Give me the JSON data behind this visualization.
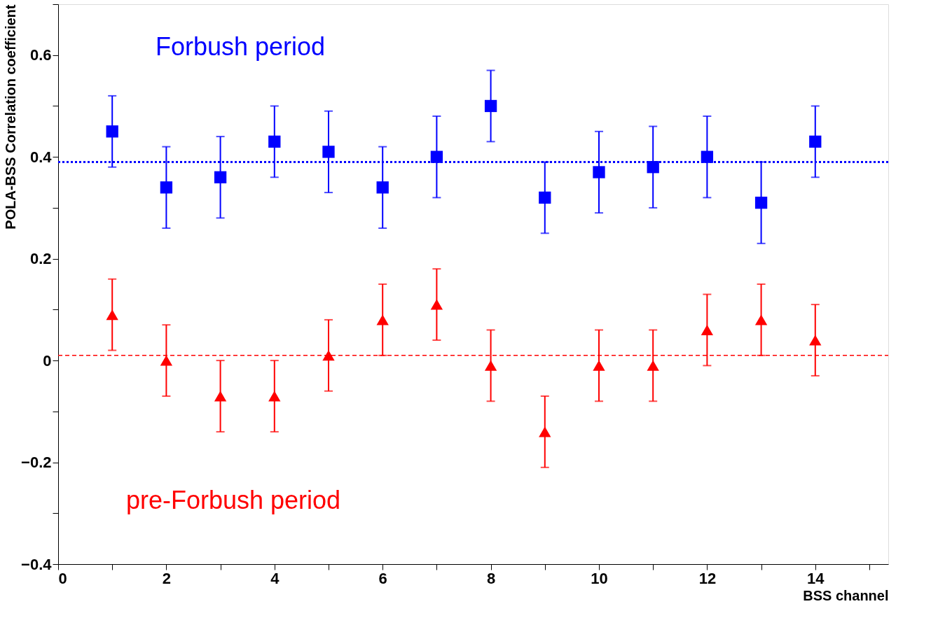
{
  "chart_data": {
    "type": "scatter",
    "xlabel": "BSS channel",
    "ylabel": "POLA-BSS Correlation coefficient",
    "x": [
      1,
      2,
      3,
      4,
      5,
      6,
      7,
      8,
      9,
      10,
      11,
      12,
      13,
      14
    ],
    "series": [
      {
        "name": "Forbush period",
        "color": "#0000ff",
        "marker": "square",
        "values": [
          0.45,
          0.34,
          0.36,
          0.43,
          0.41,
          0.34,
          0.4,
          0.5,
          0.32,
          0.37,
          0.38,
          0.4,
          0.31,
          0.43
        ],
        "errors": [
          0.07,
          0.08,
          0.08,
          0.07,
          0.08,
          0.08,
          0.08,
          0.07,
          0.07,
          0.08,
          0.08,
          0.08,
          0.08,
          0.07
        ]
      },
      {
        "name": "pre-Forbush period",
        "color": "#ff0000",
        "marker": "triangle",
        "values": [
          0.09,
          0.0,
          -0.07,
          -0.07,
          0.01,
          0.08,
          0.11,
          -0.01,
          -0.14,
          -0.01,
          -0.01,
          0.06,
          0.08,
          0.04
        ],
        "errors": [
          0.07,
          0.07,
          0.07,
          0.07,
          0.07,
          0.07,
          0.07,
          0.07,
          0.07,
          0.07,
          0.07,
          0.07,
          0.07,
          0.07
        ]
      }
    ],
    "ref_lines": [
      {
        "axis": "y",
        "value": 0.39,
        "color": "#0000ff",
        "line_style": "dotted"
      },
      {
        "axis": "y",
        "value": 0.01,
        "color": "#ff0000",
        "line_style": "dashed"
      }
    ],
    "xlim": [
      0,
      15.35
    ],
    "ylim": [
      -0.4,
      0.7
    ],
    "xticks": [
      0,
      {
        "value": 1,
        "label": null
      },
      2,
      {
        "value": 3,
        "label": null
      },
      4,
      {
        "value": 5,
        "label": null
      },
      6,
      {
        "value": 7,
        "label": null
      },
      8,
      {
        "value": 9,
        "label": null
      },
      10,
      {
        "value": 11,
        "label": null
      },
      12,
      {
        "value": 13,
        "label": null
      },
      14,
      {
        "value": 15,
        "label": null
      }
    ],
    "yticks": [
      {
        "value": -0.4,
        "label": "−0.4"
      },
      {
        "value": -0.3,
        "label": null
      },
      {
        "value": -0.2,
        "label": "−0.2"
      },
      {
        "value": -0.1,
        "label": null
      },
      0,
      {
        "value": 0.1,
        "label": null
      },
      0.2,
      {
        "value": 0.3,
        "label": null
      },
      0.4,
      {
        "value": 0.5,
        "label": null
      },
      0.6,
      {
        "value": 0.7,
        "label": null
      }
    ],
    "grid": false
  }
}
